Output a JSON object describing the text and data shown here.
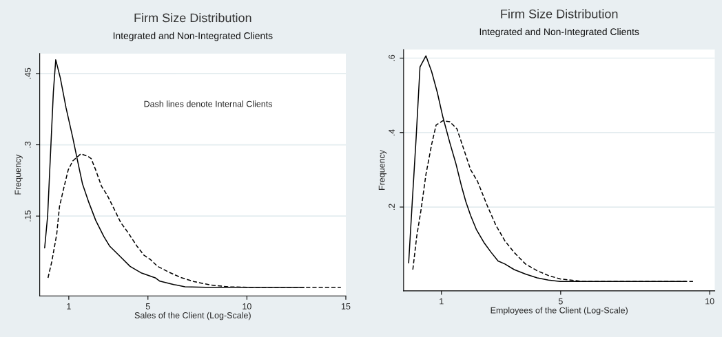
{
  "chart_data": [
    {
      "type": "line",
      "title": "Firm Size Distribution",
      "subtitle": "Integrated and Non-Integrated Clients",
      "xlabel": "Sales of the Client (Log-Scale)",
      "ylabel": "Frequency",
      "annotations": [
        "Dash lines denote Internal Clients"
      ],
      "xlim": [
        -0.47,
        15
      ],
      "ylim": [
        -0.018,
        0.492
      ],
      "xticks": [
        1,
        5,
        10,
        15
      ],
      "yticks": [
        {
          "value": 0.15,
          "label": ".15"
        },
        {
          "value": 0.3,
          "label": ".3"
        },
        {
          "value": 0.45,
          "label": ".45"
        }
      ],
      "grid": "y",
      "legend": false,
      "series": [
        {
          "color": "#000000",
          "line_style": "solid",
          "x": [
            -0.22,
            -0.07,
            0.07,
            0.22,
            0.34,
            0.57,
            0.86,
            1.2,
            1.44,
            1.69,
            2.01,
            2.36,
            2.77,
            3.06,
            3.52,
            4.1,
            4.68,
            5.37,
            5.6,
            6.3,
            6.87,
            7.92,
            9.07,
            11.39,
            12.89
          ],
          "values": [
            0.083,
            0.15,
            0.276,
            0.411,
            0.479,
            0.441,
            0.378,
            0.315,
            0.267,
            0.218,
            0.179,
            0.141,
            0.107,
            0.087,
            0.068,
            0.044,
            0.03,
            0.02,
            0.013,
            0.006,
            0.001,
            0,
            0,
            0,
            0
          ]
        },
        {
          "color": "#000000",
          "line_style": "dashed",
          "x": [
            -0.05,
            0.14,
            0.39,
            0.53,
            0.74,
            0.97,
            1.2,
            1.61,
            1.96,
            2.13,
            2.36,
            2.65,
            2.94,
            3.29,
            3.63,
            3.98,
            4.44,
            4.79,
            5.14,
            5.49,
            6.06,
            6.64,
            7.34,
            8.15,
            9.07,
            10.23,
            12.55,
            14.75
          ],
          "values": [
            0.02,
            0.054,
            0.112,
            0.17,
            0.208,
            0.247,
            0.266,
            0.281,
            0.276,
            0.271,
            0.247,
            0.213,
            0.194,
            0.165,
            0.136,
            0.116,
            0.087,
            0.068,
            0.058,
            0.044,
            0.032,
            0.021,
            0.012,
            0.005,
            0.001,
            0,
            0,
            0
          ]
        }
      ]
    },
    {
      "type": "line",
      "title": "Firm Size Distribution",
      "subtitle": "Integrated and Non-Integrated Clients",
      "xlabel": "Employees of the Client (Log-Scale)",
      "ylabel": "Frequency",
      "xlim": [
        -0.27,
        10.17
      ],
      "ylim": [
        -0.025,
        0.623
      ],
      "xticks": [
        1,
        5,
        10
      ],
      "yticks": [
        {
          "value": 0.2,
          "label": ".2"
        },
        {
          "value": 0.4,
          "label": ".4"
        },
        {
          "value": 0.6,
          "label": ".6"
        }
      ],
      "grid": "y",
      "legend": false,
      "series": [
        {
          "color": "#000000",
          "line_style": "solid",
          "x": [
            -0.1,
            0.02,
            0.15,
            0.28,
            0.48,
            0.67,
            0.86,
            1.05,
            1.28,
            1.48,
            1.67,
            1.82,
            1.98,
            2.17,
            2.44,
            2.67,
            2.9,
            3.13,
            3.44,
            3.82,
            4.21,
            4.59,
            4.98,
            5.36,
            6.13,
            7.67,
            9.21
          ],
          "values": [
            0.05,
            0.213,
            0.385,
            0.576,
            0.606,
            0.564,
            0.508,
            0.441,
            0.373,
            0.318,
            0.257,
            0.214,
            0.177,
            0.14,
            0.103,
            0.078,
            0.055,
            0.047,
            0.032,
            0.02,
            0.01,
            0.004,
            0,
            0,
            0,
            0,
            0
          ]
        },
        {
          "color": "#000000",
          "line_style": "dashed",
          "x": [
            0.04,
            0.17,
            0.32,
            0.48,
            0.67,
            0.82,
            1.05,
            1.28,
            1.52,
            1.75,
            1.98,
            2.21,
            2.52,
            2.82,
            3.13,
            3.44,
            3.82,
            4.21,
            4.59,
            4.98,
            5.75,
            6.9,
            9.44
          ],
          "values": [
            0.032,
            0.121,
            0.195,
            0.288,
            0.368,
            0.42,
            0.432,
            0.429,
            0.41,
            0.355,
            0.3,
            0.269,
            0.207,
            0.152,
            0.109,
            0.078,
            0.047,
            0.029,
            0.016,
            0.007,
            0,
            0,
            0
          ]
        }
      ]
    }
  ]
}
